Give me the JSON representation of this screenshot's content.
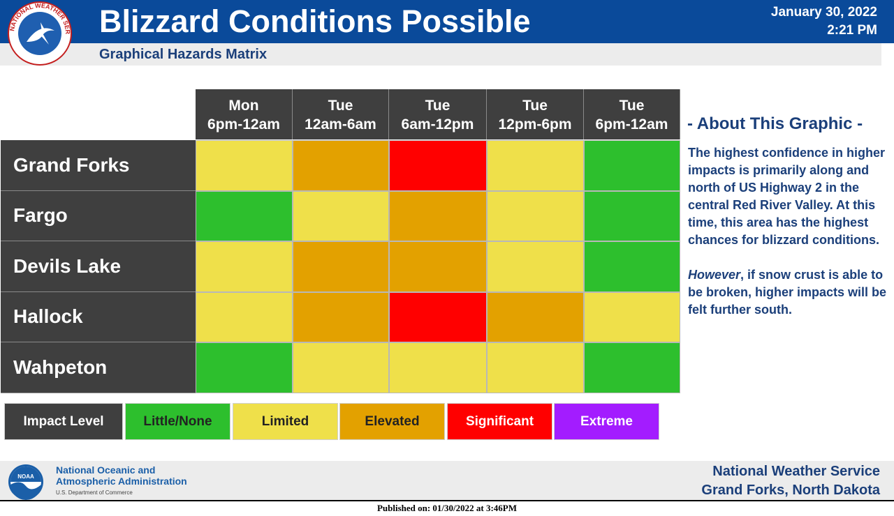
{
  "header": {
    "title": "Blizzard Conditions Possible",
    "subtitle": "Graphical Hazards Matrix",
    "date": "January 30, 2022",
    "time": "2:21 PM",
    "logo_text": "NATIONAL WEATHER SERVICE"
  },
  "matrix": {
    "columns": [
      {
        "day": "Mon",
        "period": "6pm-12am"
      },
      {
        "day": "Tue",
        "period": "12am-6am"
      },
      {
        "day": "Tue",
        "period": "6am-12pm"
      },
      {
        "day": "Tue",
        "period": "12pm-6pm"
      },
      {
        "day": "Tue",
        "period": "6pm-12am"
      }
    ],
    "rows": [
      {
        "location": "Grand Forks",
        "levels": [
          "Limited",
          "Elevated",
          "Significant",
          "Limited",
          "Little/None"
        ]
      },
      {
        "location": "Fargo",
        "levels": [
          "Little/None",
          "Limited",
          "Elevated",
          "Limited",
          "Little/None"
        ]
      },
      {
        "location": "Devils Lake",
        "levels": [
          "Limited",
          "Elevated",
          "Elevated",
          "Limited",
          "Little/None"
        ]
      },
      {
        "location": "Hallock",
        "levels": [
          "Limited",
          "Elevated",
          "Significant",
          "Elevated",
          "Limited"
        ]
      },
      {
        "location": "Wahpeton",
        "levels": [
          "Little/None",
          "Limited",
          "Limited",
          "Limited",
          "Little/None"
        ]
      }
    ]
  },
  "level_colors": {
    "Little/None": "#2dbf2d",
    "Limited": "#efe04a",
    "Elevated": "#e3a100",
    "Significant": "#ff0000",
    "Extreme": "#a31cff"
  },
  "legend": {
    "label": "Impact Level",
    "items": [
      {
        "name": "Little/None",
        "color": "#2dbf2d",
        "text_color": "#222222"
      },
      {
        "name": "Limited",
        "color": "#efe04a",
        "text_color": "#222222"
      },
      {
        "name": "Elevated",
        "color": "#e3a100",
        "text_color": "#222222"
      },
      {
        "name": "Significant",
        "color": "#ff0000",
        "text_color": "#ffffff"
      },
      {
        "name": "Extreme",
        "color": "#a31cff",
        "text_color": "#ffffff"
      }
    ]
  },
  "about": {
    "heading": "- About This Graphic -",
    "paragraph1": "The highest confidence in higher impacts is primarily along and north of US Highway 2 in the central Red River Valley. At this time, this area has the highest chances for blizzard conditions.",
    "paragraph2_em": "However",
    "paragraph2_rest": ", if snow crust is able to be broken, higher impacts will be felt further south."
  },
  "footer": {
    "noaa_logo_text": "NOAA",
    "noaa_line1": "National Oceanic and",
    "noaa_line2": "Atmospheric Administration",
    "noaa_sub": "U.S. Department of Commerce",
    "office_line1": "National Weather Service",
    "office_line2": "Grand Forks, North Dakota"
  },
  "published": "Published on: 01/30/2022 at 3:46PM"
}
